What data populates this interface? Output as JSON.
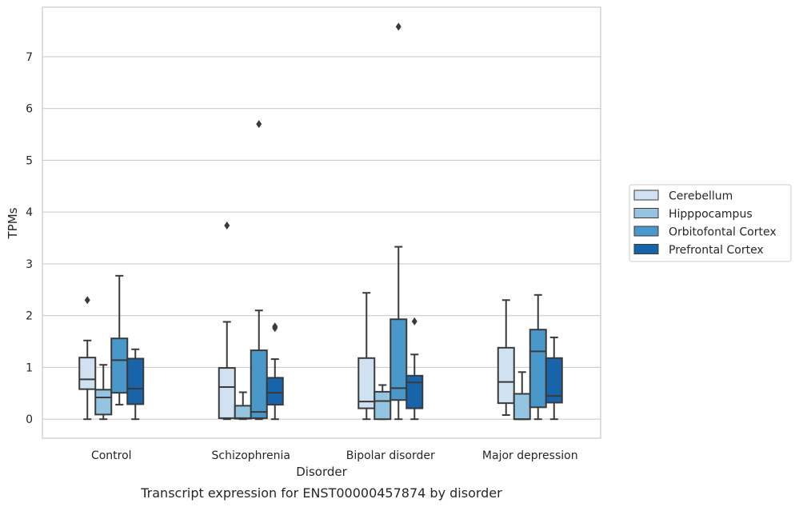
{
  "caption": "Transcript expression for ENST00000457874 by disorder",
  "chart_data": {
    "type": "box",
    "xlabel": "Disorder",
    "ylabel": "TPMs",
    "ylim": [
      -0.37,
      7.97
    ],
    "yticks": [
      0,
      1,
      2,
      3,
      4,
      5,
      6,
      7
    ],
    "grid": "horizontal",
    "legend_position": "right",
    "categories": [
      "Control",
      "Schizophrenia",
      "Bipolar disorder",
      "Major depression"
    ],
    "series": [
      {
        "name": "Cerebellum",
        "color": "#d0e1f2",
        "boxes": [
          {
            "whisker_low": 0.0,
            "q1": 0.58,
            "median": 0.77,
            "q3": 1.19,
            "whisker_high": 1.52,
            "outliers": [
              2.3
            ]
          },
          {
            "whisker_low": 0.0,
            "q1": 0.02,
            "median": 0.62,
            "q3": 0.99,
            "whisker_high": 1.88,
            "outliers": [
              3.74
            ]
          },
          {
            "whisker_low": 0.0,
            "q1": 0.21,
            "median": 0.34,
            "q3": 1.18,
            "whisker_high": 2.44,
            "outliers": []
          },
          {
            "whisker_low": 0.08,
            "q1": 0.31,
            "median": 0.72,
            "q3": 1.38,
            "whisker_high": 2.3,
            "outliers": []
          }
        ]
      },
      {
        "name": "Hipppocampus",
        "color": "#94c4df",
        "boxes": [
          {
            "whisker_low": 0.0,
            "q1": 0.09,
            "median": 0.42,
            "q3": 0.57,
            "whisker_high": 1.05,
            "outliers": []
          },
          {
            "whisker_low": 0.0,
            "q1": 0.01,
            "median": 0.02,
            "q3": 0.26,
            "whisker_high": 0.52,
            "outliers": []
          },
          {
            "whisker_low": 0.0,
            "q1": 0.0,
            "median": 0.35,
            "q3": 0.53,
            "whisker_high": 0.66,
            "outliers": []
          },
          {
            "whisker_low": 0.0,
            "q1": 0.0,
            "median": 0.0,
            "q3": 0.49,
            "whisker_high": 0.91,
            "outliers": []
          }
        ]
      },
      {
        "name": "Orbitofontal Cortex",
        "color": "#4a98c9",
        "boxes": [
          {
            "whisker_low": 0.28,
            "q1": 0.51,
            "median": 1.14,
            "q3": 1.56,
            "whisker_high": 2.77,
            "outliers": []
          },
          {
            "whisker_low": 0.0,
            "q1": 0.02,
            "median": 0.14,
            "q3": 1.33,
            "whisker_high": 2.1,
            "outliers": [
              5.7
            ]
          },
          {
            "whisker_low": 0.0,
            "q1": 0.37,
            "median": 0.6,
            "q3": 1.93,
            "whisker_high": 3.33,
            "outliers": [
              7.58
            ]
          },
          {
            "whisker_low": 0.0,
            "q1": 0.23,
            "median": 1.31,
            "q3": 1.73,
            "whisker_high": 2.4,
            "outliers": []
          }
        ]
      },
      {
        "name": "Prefrontal Cortex",
        "color": "#1764ab",
        "boxes": [
          {
            "whisker_low": 0.0,
            "q1": 0.29,
            "median": 0.59,
            "q3": 1.17,
            "whisker_high": 1.35,
            "outliers": []
          },
          {
            "whisker_low": 0.0,
            "q1": 0.28,
            "median": 0.51,
            "q3": 0.8,
            "whisker_high": 1.16,
            "outliers": [
              1.76,
              1.79
            ]
          },
          {
            "whisker_low": 0.0,
            "q1": 0.21,
            "median": 0.71,
            "q3": 0.84,
            "whisker_high": 1.25,
            "outliers": [
              1.89
            ]
          },
          {
            "whisker_low": 0.0,
            "q1": 0.32,
            "median": 0.45,
            "q3": 1.18,
            "whisker_high": 1.58,
            "outliers": []
          }
        ]
      }
    ]
  }
}
